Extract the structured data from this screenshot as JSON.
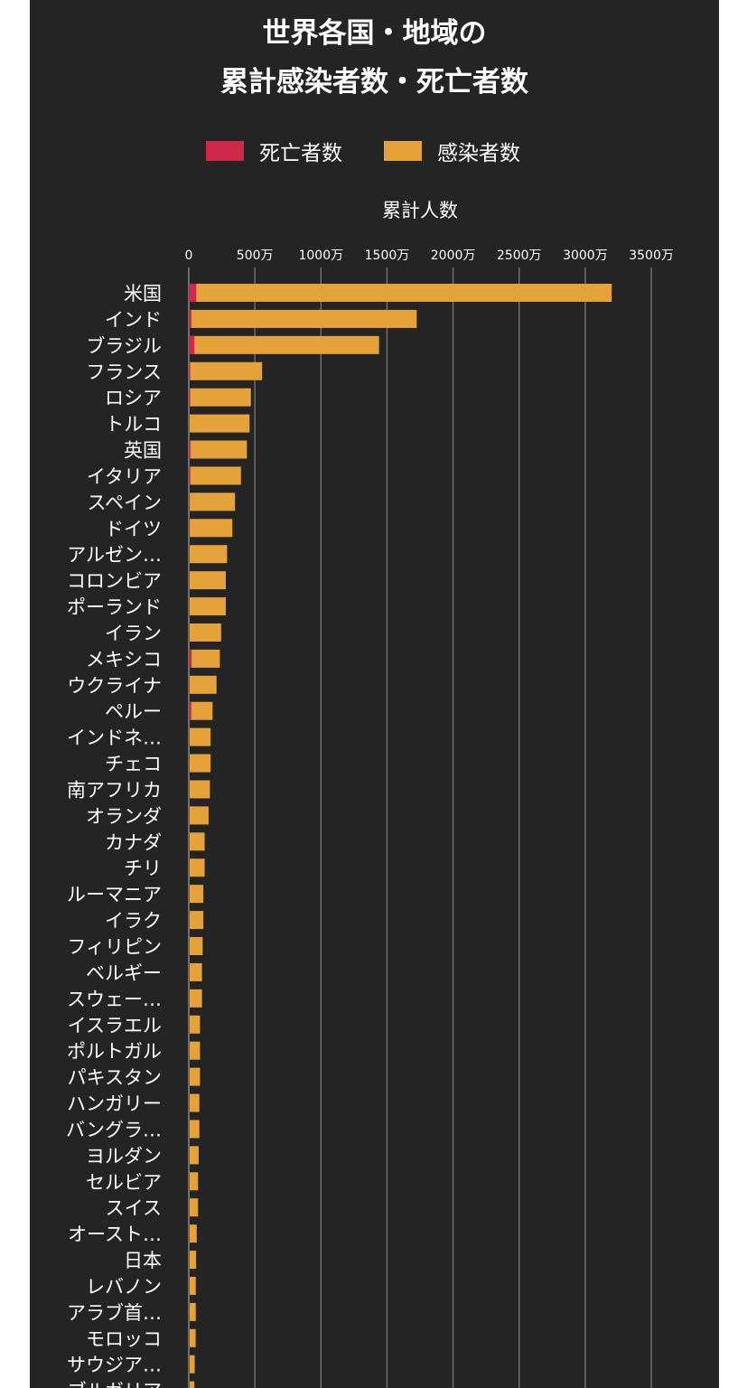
{
  "title_line1": "世界各国・地域の",
  "title_line2": "累計感染者数・死亡者数",
  "legend": [
    {
      "label": "死亡者数",
      "color": "#d0284a"
    },
    {
      "label": "感染者数",
      "color": "#e6a23a"
    }
  ],
  "chart_data": {
    "type": "bar",
    "orientation": "horizontal",
    "stacked": true,
    "title": "世界各国・地域の 累計感染者数・死亡者数",
    "xlabel": "累計人数",
    "ylabel": "",
    "xlim": [
      0,
      3500
    ],
    "x_unit": "万",
    "grid": true,
    "legend_position": "top",
    "tick_labels": [
      "0",
      "500万",
      "1000万",
      "1500万",
      "2000万",
      "2500万",
      "3000万",
      "3500万"
    ],
    "tick_values": [
      0,
      500,
      1000,
      1500,
      2000,
      2500,
      3000,
      3500
    ],
    "categories": [
      "米国",
      "インド",
      "ブラジル",
      "フランス",
      "ロシア",
      "トルコ",
      "英国",
      "イタリア",
      "スペイン",
      "ドイツ",
      "アルゼン…",
      "コロンビア",
      "ポーランド",
      "イラン",
      "メキシコ",
      "ウクライナ",
      "ペルー",
      "インドネ…",
      "チェコ",
      "南アフリカ",
      "オランダ",
      "カナダ",
      "チリ",
      "ルーマニア",
      "イラク",
      "フィリピン",
      "ベルギー",
      "スウェー…",
      "イスラエル",
      "ポルトガル",
      "パキスタン",
      "ハンガリー",
      "バングラ…",
      "ヨルダン",
      "セルビア",
      "スイス",
      "オースト…",
      "日本",
      "レバノン",
      "アラブ首…",
      "モロッコ",
      "サウジア…",
      "ブルガリア"
    ],
    "series": [
      {
        "name": "死亡者数",
        "color": "#d0284a",
        "values": [
          57,
          20,
          42,
          11,
          11,
          4,
          13,
          12,
          8,
          8,
          6,
          7,
          7,
          7,
          22,
          4,
          19,
          5,
          3,
          5,
          2,
          2.4,
          3,
          3,
          1.5,
          1.5,
          2.5,
          1.4,
          0.6,
          1.7,
          1.5,
          2.9,
          0.9,
          0.9,
          0.7,
          1,
          0.9,
          1.1,
          0.7,
          0.2,
          0.9,
          0.7,
          1.8
        ]
      },
      {
        "name": "感染者数",
        "color": "#e6a23a",
        "values": [
          3200,
          1725,
          1440,
          555,
          470,
          460,
          440,
          395,
          350,
          330,
          290,
          280,
          280,
          245,
          235,
          210,
          180,
          165,
          165,
          160,
          150,
          120,
          120,
          110,
          110,
          105,
          100,
          100,
          85,
          85,
          85,
          80,
          80,
          75,
          70,
          70,
          60,
          55,
          53,
          53,
          52,
          45,
          42
        ]
      }
    ]
  }
}
